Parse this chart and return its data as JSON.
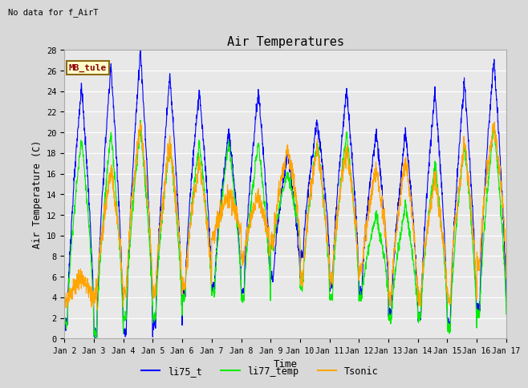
{
  "title": "Air Temperatures",
  "subtitle": "No data for f_AirT",
  "xlabel": "Time",
  "ylabel": "Air Temperature (C)",
  "ylim": [
    0,
    28
  ],
  "yticks": [
    0,
    2,
    4,
    6,
    8,
    10,
    12,
    14,
    16,
    18,
    20,
    22,
    24,
    26,
    28
  ],
  "xtick_labels": [
    "Jan 2",
    "Jan 3",
    "Jan 4",
    "Jan 5",
    "Jan 6",
    "Jan 7",
    "Jan 8",
    "Jan 9",
    "Jan 10",
    "Jan 11",
    "Jan 12",
    "Jan 13",
    "Jan 14",
    "Jan 15",
    "Jan 16",
    "Jan 17"
  ],
  "annotation": "MB_tule",
  "legend_labels": [
    "li75_t",
    "li77_temp",
    "Tsonic"
  ],
  "line_colors": [
    "blue",
    "#00ee00",
    "orange"
  ],
  "background_color": "#e8e8e8",
  "fig_background": "#d8d8d8"
}
